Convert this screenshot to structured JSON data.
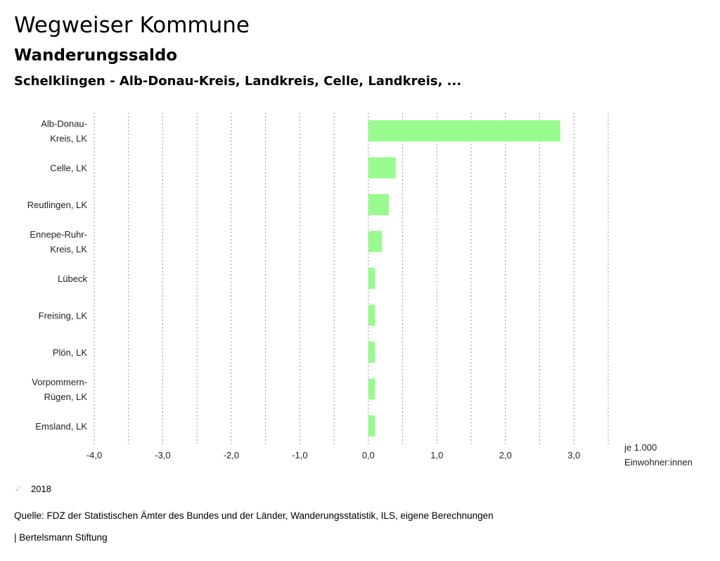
{
  "header": {
    "title": "Wegweiser Kommune",
    "subtitle": "Wanderungssaldo",
    "selection": "Schelklingen - Alb-Donau-Kreis, Landkreis, Celle, Landkreis, ..."
  },
  "colors": {
    "bar": "#99fb8f",
    "grid": "#999999"
  },
  "chart_data": {
    "type": "bar",
    "orientation": "horizontal",
    "categories": [
      [
        "Alb-Donau-",
        "Kreis, LK"
      ],
      [
        "Celle, LK"
      ],
      [
        "Reutlingen, LK"
      ],
      [
        "Ennepe-Ruhr-",
        "Kreis, LK"
      ],
      [
        "Lübeck"
      ],
      [
        "Freising, LK"
      ],
      [
        "Plön, LK"
      ],
      [
        "Vorpommern-",
        "Rügen, LK"
      ],
      [
        "Emsland, LK"
      ]
    ],
    "series": [
      {
        "name": "2018",
        "values": [
          2.8,
          0.4,
          0.3,
          0.2,
          0.1,
          0.1,
          0.1,
          0.1,
          0.1
        ]
      }
    ],
    "xlim": [
      -4.0,
      3.5
    ],
    "xticks": [
      {
        "v": -4.0,
        "label": "-4,0"
      },
      {
        "v": -3.0,
        "label": "-3,0"
      },
      {
        "v": -2.0,
        "label": "-2,0"
      },
      {
        "v": -1.0,
        "label": "-1,0"
      },
      {
        "v": 0.0,
        "label": "0,0"
      },
      {
        "v": 1.0,
        "label": "1,0"
      },
      {
        "v": 2.0,
        "label": "2,0"
      },
      {
        "v": 3.0,
        "label": "3,0"
      }
    ],
    "gridlines": [
      -4.0,
      -3.5,
      -3.0,
      -2.5,
      -2.0,
      -1.5,
      -1.0,
      -0.5,
      0.0,
      0.5,
      1.0,
      1.5,
      2.0,
      2.5,
      3.0,
      3.5
    ],
    "unit_label": [
      "je 1.000",
      "Einwohner:innen"
    ],
    "grid": true
  },
  "legend": {
    "label": "2018",
    "icon": "check-icon"
  },
  "footer": {
    "source": "Quelle: FDZ der Statistischen Ämter des Bundes und der Länder, Wanderungsstatistik, ILS, eigene Berechnungen",
    "brand": "| Bertelsmann Stiftung"
  }
}
